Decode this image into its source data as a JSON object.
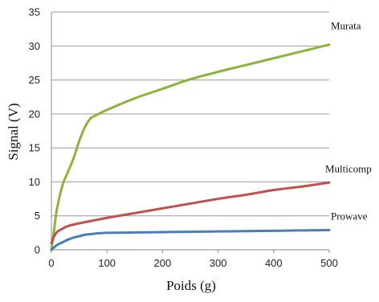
{
  "chart_data": {
    "type": "line",
    "title": "",
    "xlabel": "Poids (g)",
    "ylabel": "Signal  (V)",
    "xlim": [
      0,
      500
    ],
    "ylim": [
      0,
      35
    ],
    "x_ticks": [
      0,
      100,
      200,
      300,
      400,
      500
    ],
    "y_ticks": [
      0,
      5,
      10,
      15,
      20,
      25,
      30,
      35
    ],
    "grid": "horizontal",
    "legend": "none",
    "series": [
      {
        "name": "Murata",
        "color": "#8db43a",
        "x": [
          0,
          5,
          10,
          20,
          30,
          40,
          50,
          60,
          70,
          80,
          90,
          100,
          150,
          200,
          250,
          300,
          350,
          400,
          450,
          500
        ],
        "y": [
          0,
          3,
          6,
          9.5,
          11.5,
          13.5,
          16,
          18,
          19.3,
          19.8,
          20.2,
          20.6,
          22.3,
          23.7,
          25.1,
          26.2,
          27.2,
          28.2,
          29.2,
          30.2
        ]
      },
      {
        "name": "Multicomp",
        "color": "#c0504d",
        "x": [
          0,
          5,
          10,
          20,
          30,
          50,
          75,
          100,
          150,
          200,
          250,
          300,
          350,
          400,
          450,
          500
        ],
        "y": [
          1,
          2,
          2.6,
          3.1,
          3.5,
          3.9,
          4.3,
          4.7,
          5.4,
          6.1,
          6.8,
          7.5,
          8.1,
          8.8,
          9.3,
          9.9
        ]
      },
      {
        "name": "Prowave",
        "color": "#4a7ebb",
        "x": [
          0,
          10,
          20,
          30,
          40,
          50,
          60,
          70,
          80,
          90,
          100,
          150,
          200,
          250,
          300,
          350,
          400,
          450,
          500
        ],
        "y": [
          0,
          0.7,
          1.1,
          1.5,
          1.8,
          2.0,
          2.2,
          2.3,
          2.4,
          2.45,
          2.5,
          2.55,
          2.6,
          2.65,
          2.7,
          2.75,
          2.8,
          2.85,
          2.9
        ]
      }
    ]
  }
}
